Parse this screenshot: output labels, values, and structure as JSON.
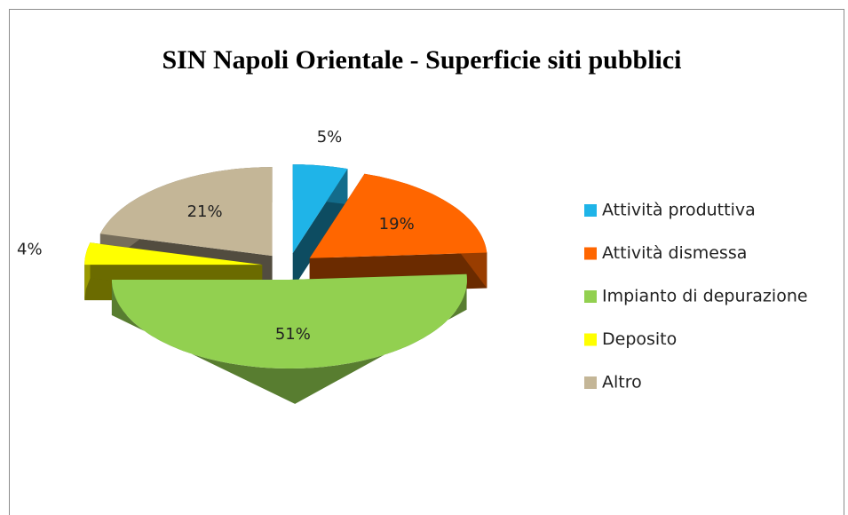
{
  "chart_data": {
    "type": "pie",
    "title": "SIN Napoli Orientale - Superficie  siti pubblici",
    "categories": [
      "Attività produttiva",
      "Attività dismessa",
      "Impianto di depurazione",
      "Deposito",
      "Altro"
    ],
    "values": [
      5,
      19,
      51,
      4,
      21
    ],
    "value_labels": [
      "5%",
      "19%",
      "51%",
      "4%",
      "21%"
    ],
    "colors": [
      "#1fb4e8",
      "#ff6600",
      "#92d050",
      "#ffff00",
      "#c4b697"
    ],
    "legend": "right"
  }
}
